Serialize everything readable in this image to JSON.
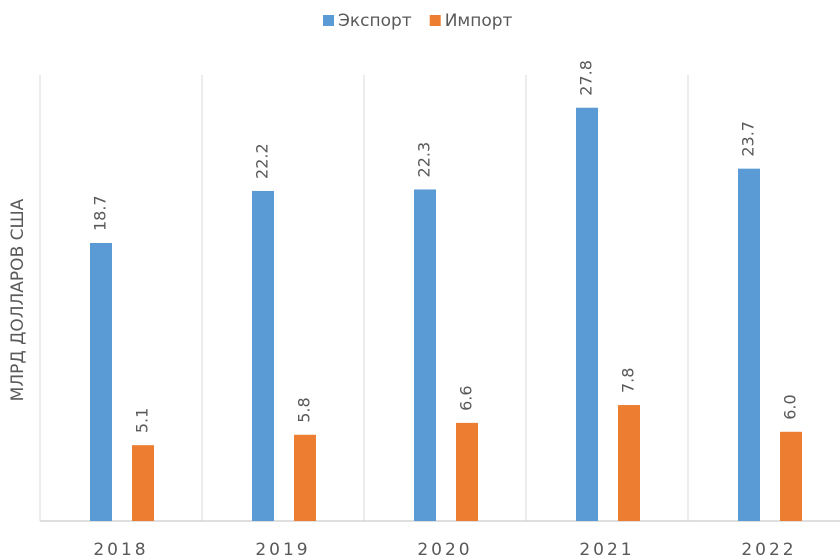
{
  "chart_data": {
    "type": "bar",
    "y_label": "МЛРД ДОЛЛАРОВ США",
    "categories": [
      "2018",
      "2019",
      "2020",
      "2021",
      "2022"
    ],
    "series": [
      {
        "name": "Экспорт",
        "color": "#5b9bd5",
        "values": [
          18.7,
          22.2,
          22.3,
          27.8,
          23.7
        ]
      },
      {
        "name": "Импорт",
        "color": "#ed7d31",
        "values": [
          5.1,
          5.8,
          6.6,
          7.8,
          6.0
        ],
        "value_labels": [
          "5.1",
          "5.8",
          "6.6",
          "7.8",
          "6.0"
        ]
      }
    ],
    "ylim": [
      0,
      30
    ],
    "legend": "top"
  }
}
